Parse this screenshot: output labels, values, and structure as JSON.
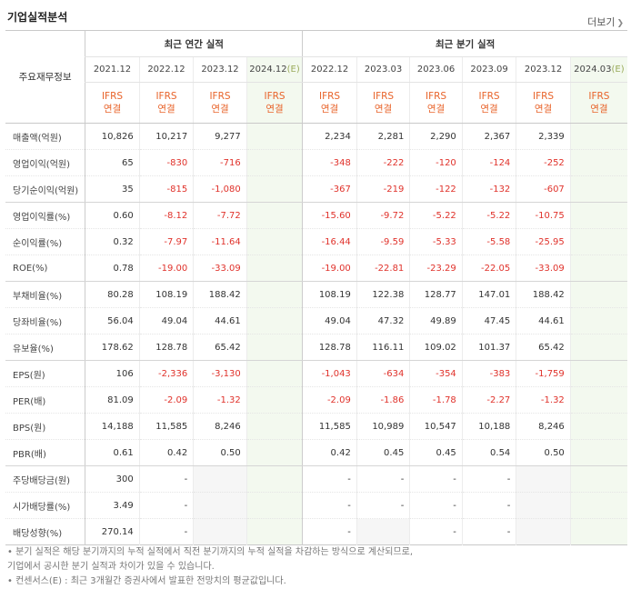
{
  "header": {
    "title": "기업실적분석",
    "more_label": "더보기",
    "more_icon": "chevron-right-icon"
  },
  "table": {
    "item_col_label": "주요재무정보",
    "group_annual": "최근 연간 실적",
    "group_quarter": "최근 분기 실적",
    "annual_periods": [
      "2021.12",
      "2022.12",
      "2023.12",
      "2024.12"
    ],
    "quarter_periods": [
      "2022.12",
      "2023.03",
      "2023.06",
      "2023.09",
      "2023.12",
      "2024.03"
    ],
    "estimate_mark": "(E)",
    "basis_top": "IFRS",
    "basis_bottom": "연결",
    "rows": [
      {
        "label": "매출액(억원)",
        "a": [
          "10,826",
          "10,217",
          "9,277",
          ""
        ],
        "q": [
          "2,234",
          "2,281",
          "2,290",
          "2,367",
          "2,339",
          ""
        ]
      },
      {
        "label": "영업이익(억원)",
        "a": [
          "65",
          "-830",
          "-716",
          ""
        ],
        "q": [
          "-348",
          "-222",
          "-120",
          "-124",
          "-252",
          ""
        ]
      },
      {
        "label": "당기순이익(억원)",
        "a": [
          "35",
          "-815",
          "-1,080",
          ""
        ],
        "q": [
          "-367",
          "-219",
          "-122",
          "-132",
          "-607",
          ""
        ]
      },
      {
        "label": "영업이익률(%)",
        "a": [
          "0.60",
          "-8.12",
          "-7.72",
          ""
        ],
        "q": [
          "-15.60",
          "-9.72",
          "-5.22",
          "-5.22",
          "-10.75",
          ""
        ]
      },
      {
        "label": "순이익률(%)",
        "a": [
          "0.32",
          "-7.97",
          "-11.64",
          ""
        ],
        "q": [
          "-16.44",
          "-9.59",
          "-5.33",
          "-5.58",
          "-25.95",
          ""
        ]
      },
      {
        "label": "ROE(%)",
        "a": [
          "0.78",
          "-19.00",
          "-33.09",
          ""
        ],
        "q": [
          "-19.00",
          "-22.81",
          "-23.29",
          "-22.05",
          "-33.09",
          ""
        ]
      },
      {
        "label": "부채비율(%)",
        "a": [
          "80.28",
          "108.19",
          "188.42",
          ""
        ],
        "q": [
          "108.19",
          "122.38",
          "128.77",
          "147.01",
          "188.42",
          ""
        ]
      },
      {
        "label": "당좌비율(%)",
        "a": [
          "56.04",
          "49.04",
          "44.61",
          ""
        ],
        "q": [
          "49.04",
          "47.32",
          "49.89",
          "47.45",
          "44.61",
          ""
        ]
      },
      {
        "label": "유보율(%)",
        "a": [
          "178.62",
          "128.78",
          "65.42",
          ""
        ],
        "q": [
          "128.78",
          "116.11",
          "109.02",
          "101.37",
          "65.42",
          ""
        ]
      },
      {
        "label": "EPS(원)",
        "a": [
          "106",
          "-2,336",
          "-3,130",
          ""
        ],
        "q": [
          "-1,043",
          "-634",
          "-354",
          "-383",
          "-1,759",
          ""
        ]
      },
      {
        "label": "PER(배)",
        "a": [
          "81.09",
          "-2.09",
          "-1.32",
          ""
        ],
        "q": [
          "-2.09",
          "-1.86",
          "-1.78",
          "-2.27",
          "-1.32",
          ""
        ]
      },
      {
        "label": "BPS(원)",
        "a": [
          "14,188",
          "11,585",
          "8,246",
          ""
        ],
        "q": [
          "11,585",
          "10,989",
          "10,547",
          "10,188",
          "8,246",
          ""
        ]
      },
      {
        "label": "PBR(배)",
        "a": [
          "0.61",
          "0.42",
          "0.50",
          ""
        ],
        "q": [
          "0.42",
          "0.45",
          "0.45",
          "0.54",
          "0.50",
          ""
        ]
      },
      {
        "label": "주당배당금(원)",
        "a": [
          "300",
          "-",
          "",
          ""
        ],
        "q": [
          "-",
          "-",
          "-",
          "-",
          "",
          ""
        ]
      },
      {
        "label": "시가배당률(%)",
        "a": [
          "3.49",
          "-",
          "",
          ""
        ],
        "q": [
          "-",
          "-",
          "-",
          "-",
          "",
          ""
        ]
      },
      {
        "label": "배당성향(%)",
        "a": [
          "270.14",
          "-",
          "",
          ""
        ],
        "q": [
          "-",
          "",
          "-",
          "-",
          "",
          ""
        ]
      }
    ]
  },
  "footnotes": [
    "• 분기 실적은 해당 분기까지의 누적 실적에서 직전 분기까지의 누적 실적을 차감하는 방식으로 계산되므로,",
    "  기업에서 공시한 분기 실적과 차이가 있을 수 있습니다.",
    "• 컨센서스(E) : 최근 3개월간 증권사에서 발표한 전망치의 평균값입니다."
  ],
  "colors": {
    "negative": "#e0322b",
    "ifrs": "#e8632a",
    "estimate": "#9aaa5a",
    "forecast_bg": "#f3f9ef"
  }
}
